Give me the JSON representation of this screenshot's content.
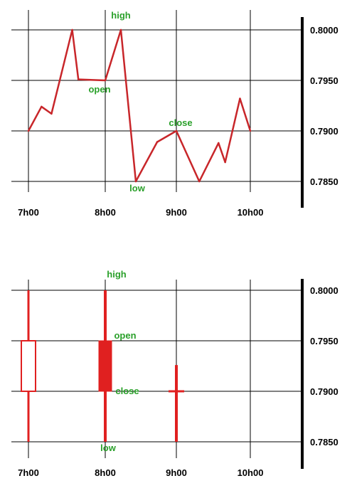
{
  "colors": {
    "series": "#c8262a",
    "candle": "#e02020",
    "annotation": "#2aa02a",
    "grid": "#000000"
  },
  "chart_data": [
    {
      "type": "line",
      "title": "",
      "x_categories": [
        "7h00",
        "8h00",
        "9h00",
        "10h00"
      ],
      "y_ticks": [
        "0.8000",
        "0.7950",
        "0.7900",
        "0.7850"
      ],
      "ylim": [
        0.785,
        0.8
      ],
      "grid": true,
      "y_axis_position": "right",
      "series": [
        {
          "points": [
            {
              "x": 7.0,
              "y": 0.79
            },
            {
              "x": 7.17,
              "y": 0.7924
            },
            {
              "x": 7.3,
              "y": 0.7917
            },
            {
              "x": 7.57,
              "y": 0.8
            },
            {
              "x": 7.65,
              "y": 0.7951
            },
            {
              "x": 8.0,
              "y": 0.795
            },
            {
              "x": 8.22,
              "y": 0.8
            },
            {
              "x": 8.43,
              "y": 0.785
            },
            {
              "x": 8.73,
              "y": 0.7889
            },
            {
              "x": 9.0,
              "y": 0.79
            },
            {
              "x": 9.31,
              "y": 0.785
            },
            {
              "x": 9.57,
              "y": 0.7888
            },
            {
              "x": 9.66,
              "y": 0.7869
            },
            {
              "x": 9.86,
              "y": 0.7932
            },
            {
              "x": 10.0,
              "y": 0.79
            }
          ]
        }
      ],
      "annotations": [
        {
          "text": "high",
          "x": 8.22,
          "y": 0.8
        },
        {
          "text": "open",
          "x": 8.0,
          "y": 0.795
        },
        {
          "text": "close",
          "x": 9.0,
          "y": 0.79
        },
        {
          "text": "low",
          "x": 8.43,
          "y": 0.785
        }
      ]
    },
    {
      "type": "candlestick",
      "title": "",
      "x_categories": [
        "7h00",
        "8h00",
        "9h00",
        "10h00"
      ],
      "y_ticks": [
        "0.8000",
        "0.7950",
        "0.7900",
        "0.7850"
      ],
      "ylim": [
        0.785,
        0.8
      ],
      "grid": true,
      "y_axis_position": "right",
      "candles": [
        {
          "x": 7.0,
          "open": 0.79,
          "high": 0.8,
          "low": 0.785,
          "close": 0.795,
          "filled": false
        },
        {
          "x": 8.0,
          "open": 0.795,
          "high": 0.8,
          "low": 0.785,
          "close": 0.79,
          "filled": true
        },
        {
          "x": 9.0,
          "open": 0.79,
          "high": 0.7926,
          "low": 0.785,
          "close": 0.79,
          "filled": true
        }
      ],
      "annotations": [
        {
          "text": "high",
          "x": 8.0,
          "y": 0.8
        },
        {
          "text": "open",
          "x": 8.0,
          "y": 0.795
        },
        {
          "text": "close",
          "x": 8.0,
          "y": 0.79
        },
        {
          "text": "low",
          "x": 8.0,
          "y": 0.785
        }
      ]
    }
  ]
}
